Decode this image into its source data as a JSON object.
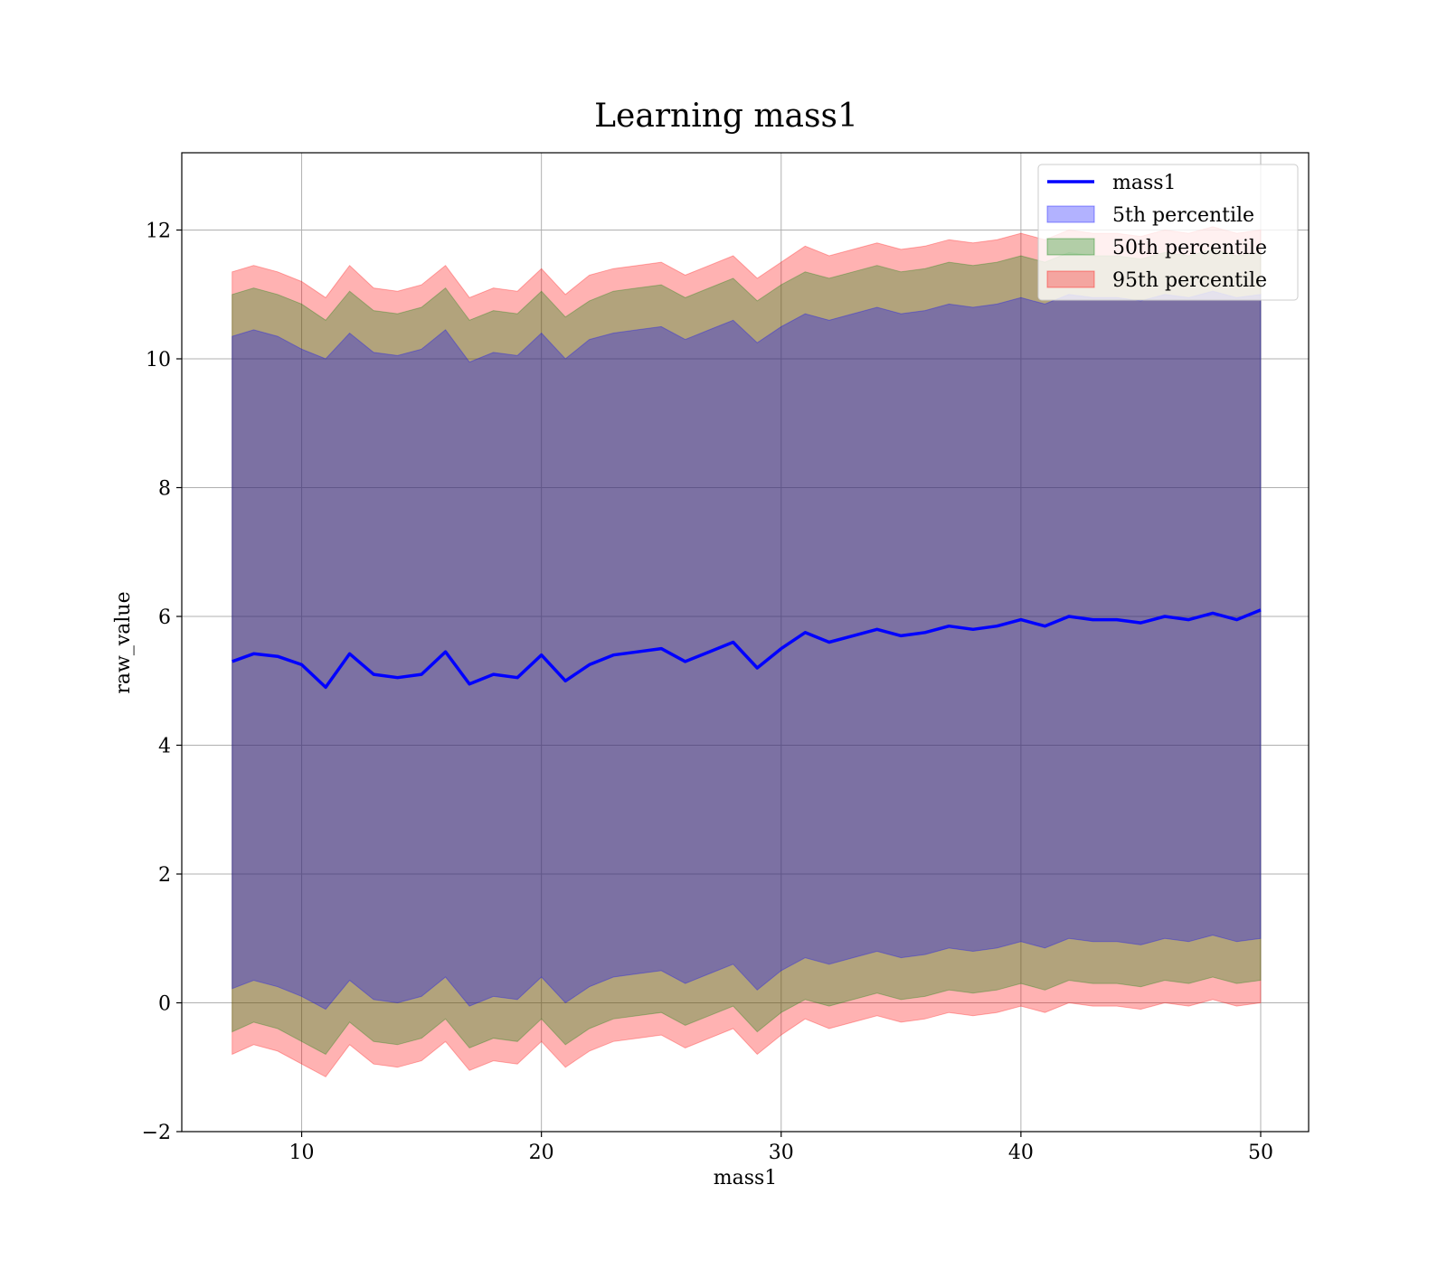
{
  "chart_data": {
    "type": "area",
    "title": "Learning mass1",
    "xlabel": "mass1",
    "ylabel": "raw_value",
    "xlim": [
      5,
      52
    ],
    "ylim": [
      -2,
      13.2
    ],
    "x_ticks": [
      10,
      20,
      30,
      40,
      50
    ],
    "y_ticks": [
      -2,
      0,
      2,
      4,
      6,
      8,
      10,
      12
    ],
    "grid": true,
    "legend_position": "top-right",
    "x": [
      7.1,
      8,
      9,
      10,
      11,
      12,
      13,
      14,
      15,
      16,
      17,
      18,
      19,
      20,
      21,
      22,
      23,
      24,
      25,
      26,
      27,
      28,
      29,
      30,
      31,
      32,
      33,
      34,
      35,
      36,
      37,
      38,
      39,
      40,
      41,
      42,
      43,
      44,
      45,
      46,
      47,
      48,
      49,
      50
    ],
    "series": [
      {
        "name": "mass1",
        "kind": "line",
        "color": "#0000ff",
        "values": [
          5.3,
          5.42,
          5.38,
          5.25,
          4.9,
          5.42,
          5.1,
          5.05,
          5.1,
          5.45,
          4.95,
          5.1,
          5.05,
          5.4,
          5.0,
          5.25,
          5.4,
          5.45,
          5.5,
          5.3,
          5.45,
          5.6,
          5.2,
          5.5,
          5.75,
          5.6,
          5.7,
          5.8,
          5.7,
          5.75,
          5.85,
          5.8,
          5.85,
          5.95,
          5.85,
          6.0,
          5.95,
          5.95,
          5.9,
          6.0,
          5.95,
          6.05,
          5.95,
          6.1
        ]
      },
      {
        "name": "5th percentile",
        "kind": "band",
        "color": "#0000ff",
        "upper": [
          10.35,
          10.45,
          10.35,
          10.15,
          10.0,
          10.4,
          10.1,
          10.05,
          10.15,
          10.45,
          9.95,
          10.1,
          10.05,
          10.4,
          10.0,
          10.3,
          10.4,
          10.45,
          10.5,
          10.3,
          10.45,
          10.6,
          10.25,
          10.5,
          10.7,
          10.6,
          10.7,
          10.8,
          10.7,
          10.75,
          10.85,
          10.8,
          10.85,
          10.95,
          10.85,
          11.0,
          10.95,
          10.95,
          10.9,
          11.0,
          10.95,
          11.05,
          10.95,
          11.0
        ],
        "lower": [
          0.22,
          0.35,
          0.25,
          0.1,
          -0.1,
          0.35,
          0.05,
          0.0,
          0.1,
          0.4,
          -0.05,
          0.1,
          0.05,
          0.4,
          0.0,
          0.25,
          0.4,
          0.45,
          0.5,
          0.3,
          0.45,
          0.6,
          0.2,
          0.5,
          0.7,
          0.6,
          0.7,
          0.8,
          0.7,
          0.75,
          0.85,
          0.8,
          0.85,
          0.95,
          0.85,
          1.0,
          0.95,
          0.95,
          0.9,
          1.0,
          0.95,
          1.05,
          0.95,
          1.0
        ]
      },
      {
        "name": "50th percentile",
        "kind": "band",
        "color": "#008000",
        "upper": [
          11.0,
          11.1,
          11.0,
          10.85,
          10.6,
          11.05,
          10.75,
          10.7,
          10.8,
          11.1,
          10.6,
          10.75,
          10.7,
          11.05,
          10.65,
          10.9,
          11.05,
          11.1,
          11.15,
          10.95,
          11.1,
          11.25,
          10.9,
          11.15,
          11.35,
          11.25,
          11.35,
          11.45,
          11.35,
          11.4,
          11.5,
          11.45,
          11.5,
          11.6,
          11.5,
          11.65,
          11.6,
          11.6,
          11.55,
          11.65,
          11.6,
          11.7,
          11.6,
          11.65
        ],
        "lower": [
          -0.45,
          -0.3,
          -0.4,
          -0.6,
          -0.8,
          -0.3,
          -0.6,
          -0.65,
          -0.55,
          -0.25,
          -0.7,
          -0.55,
          -0.6,
          -0.25,
          -0.65,
          -0.4,
          -0.25,
          -0.2,
          -0.15,
          -0.35,
          -0.2,
          -0.05,
          -0.45,
          -0.15,
          0.05,
          -0.05,
          0.05,
          0.15,
          0.05,
          0.1,
          0.2,
          0.15,
          0.2,
          0.3,
          0.2,
          0.35,
          0.3,
          0.3,
          0.25,
          0.35,
          0.3,
          0.4,
          0.3,
          0.35
        ]
      },
      {
        "name": "95th percentile",
        "kind": "band",
        "color": "#ff0000",
        "upper": [
          11.35,
          11.45,
          11.35,
          11.2,
          10.95,
          11.45,
          11.1,
          11.05,
          11.15,
          11.45,
          10.95,
          11.1,
          11.05,
          11.4,
          11.0,
          11.3,
          11.4,
          11.45,
          11.5,
          11.3,
          11.45,
          11.6,
          11.25,
          11.5,
          11.75,
          11.6,
          11.7,
          11.8,
          11.7,
          11.75,
          11.85,
          11.8,
          11.85,
          11.95,
          11.85,
          12.0,
          11.95,
          11.95,
          11.9,
          12.0,
          11.95,
          12.05,
          11.95,
          12.0
        ],
        "lower": [
          -0.8,
          -0.65,
          -0.75,
          -0.95,
          -1.15,
          -0.65,
          -0.95,
          -1.0,
          -0.9,
          -0.6,
          -1.05,
          -0.9,
          -0.95,
          -0.6,
          -1.0,
          -0.75,
          -0.6,
          -0.55,
          -0.5,
          -0.7,
          -0.55,
          -0.4,
          -0.8,
          -0.5,
          -0.25,
          -0.4,
          -0.3,
          -0.2,
          -0.3,
          -0.25,
          -0.15,
          -0.2,
          -0.15,
          -0.05,
          -0.15,
          0.0,
          -0.05,
          -0.05,
          -0.1,
          0.0,
          -0.05,
          0.05,
          -0.05,
          0.0
        ]
      }
    ]
  }
}
